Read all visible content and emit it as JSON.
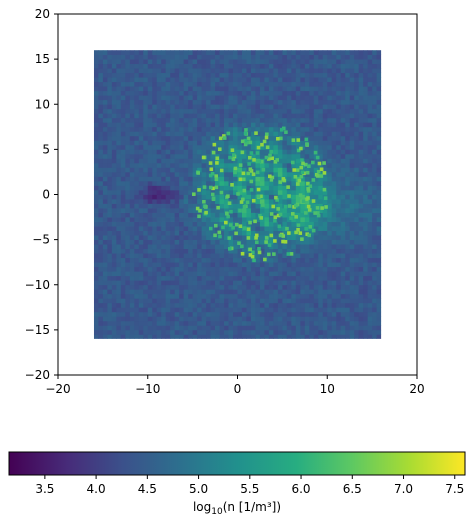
{
  "chart_data": {
    "type": "heatmap",
    "title": "",
    "xlabel": "",
    "ylabel": "",
    "xlim": [
      -20,
      20
    ],
    "ylim": [
      -20,
      20
    ],
    "extent": [
      -16,
      16,
      -16,
      16
    ],
    "x_ticks": [
      "−20",
      "−10",
      "0",
      "10",
      "20"
    ],
    "x_tick_values": [
      -20,
      -10,
      0,
      10,
      20
    ],
    "y_ticks": [
      "20",
      "15",
      "10",
      "5",
      "0",
      "−5",
      "−10",
      "−15",
      "−20"
    ],
    "y_tick_values": [
      20,
      15,
      10,
      5,
      0,
      -5,
      -10,
      -15,
      -20
    ],
    "colormap": "viridis",
    "colorbar": {
      "orientation": "horizontal",
      "range": [
        3.15,
        7.6
      ],
      "ticks": [
        "3.5",
        "4.0",
        "4.5",
        "5.0",
        "5.5",
        "6.0",
        "6.5",
        "7.0",
        "7.5"
      ],
      "tick_values": [
        3.5,
        4.0,
        4.5,
        5.0,
        5.5,
        6.0,
        6.5,
        7.0,
        7.5
      ],
      "label_prefix": "log",
      "label_sub": "10",
      "label_suffix": "(n [1/m³])"
    },
    "background_level": 4.4,
    "features": [
      {
        "kind": "shell",
        "center": [
          2.5,
          0.5
        ],
        "radius": 9,
        "peak": 6.3
      },
      {
        "kind": "tail",
        "direction": "right",
        "y": -1.5,
        "peak": 5.2
      },
      {
        "kind": "cavity",
        "center": [
          -9,
          0
        ],
        "peak": 3.6
      }
    ]
  }
}
